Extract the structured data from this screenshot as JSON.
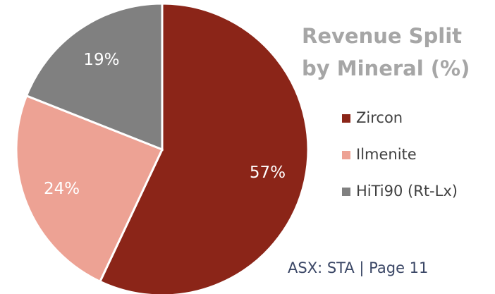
{
  "chart_data": {
    "type": "pie",
    "title": "Revenue Split by Mineral (%)",
    "categories": [
      "Zircon",
      "Ilmenite",
      "HiTi90 (Rt-Lx)"
    ],
    "values": [
      57,
      24,
      19
    ],
    "value_labels": [
      "57%",
      "24%",
      "19%"
    ],
    "colors": [
      "#8b2518",
      "#eda294",
      "#808080"
    ],
    "legend": "right"
  },
  "footer": "ASX: STA | Page 11"
}
